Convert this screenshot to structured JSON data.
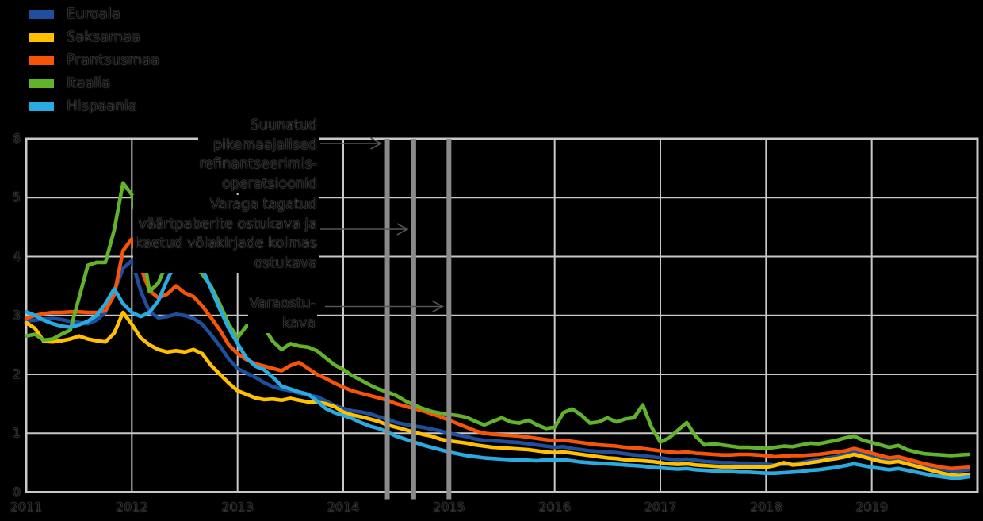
{
  "chart_data": {
    "type": "line",
    "title": "",
    "x_unit": "month",
    "x_range": [
      "2011-01",
      "2019-12"
    ],
    "x_tick_labels": [
      "2011",
      "2012",
      "2013",
      "2014",
      "2015",
      "2016",
      "2017",
      "2018",
      "2019"
    ],
    "y_tick_labels": [
      "0",
      "1",
      "2",
      "3",
      "4",
      "5",
      "6"
    ],
    "ylim": [
      0,
      6
    ],
    "grid": true,
    "legend_position": "top-left",
    "background_color": "#000000",
    "gridline_color": "#C8C8C8",
    "series": [
      {
        "name": "Euroala",
        "color": "#1F4E9C",
        "values": [
          2.9,
          2.92,
          2.94,
          2.95,
          2.93,
          2.9,
          2.88,
          2.86,
          2.92,
          3.05,
          3.4,
          3.8,
          3.93,
          3.42,
          3.06,
          2.96,
          2.98,
          3.02,
          3.0,
          2.95,
          2.85,
          2.67,
          2.48,
          2.26,
          2.1,
          2.02,
          1.95,
          1.86,
          1.79,
          1.75,
          1.72,
          1.68,
          1.65,
          1.62,
          1.55,
          1.47,
          1.42,
          1.38,
          1.36,
          1.33,
          1.28,
          1.24,
          1.18,
          1.15,
          1.12,
          1.1,
          1.07,
          1.04,
          1.0,
          0.97,
          0.94,
          0.9,
          0.88,
          0.87,
          0.86,
          0.85,
          0.84,
          0.82,
          0.8,
          0.78,
          0.76,
          0.77,
          0.74,
          0.72,
          0.7,
          0.69,
          0.68,
          0.67,
          0.65,
          0.63,
          0.62,
          0.6,
          0.58,
          0.56,
          0.55,
          0.56,
          0.54,
          0.52,
          0.51,
          0.5,
          0.5,
          0.49,
          0.49,
          0.48,
          0.47,
          0.46,
          0.47,
          0.48,
          0.5,
          0.53,
          0.55,
          0.58,
          0.6,
          0.64,
          0.68,
          0.64,
          0.6,
          0.56,
          0.54,
          0.56,
          0.52,
          0.48,
          0.45,
          0.42,
          0.39,
          0.36,
          0.36,
          0.38
        ]
      },
      {
        "name": "Saksamaa",
        "color": "#FFC000",
        "values": [
          2.88,
          2.78,
          2.56,
          2.55,
          2.57,
          2.6,
          2.65,
          2.6,
          2.57,
          2.55,
          2.7,
          3.05,
          2.85,
          2.62,
          2.5,
          2.42,
          2.38,
          2.4,
          2.38,
          2.42,
          2.35,
          2.15,
          2.0,
          1.85,
          1.72,
          1.66,
          1.6,
          1.57,
          1.58,
          1.56,
          1.59,
          1.56,
          1.53,
          1.53,
          1.5,
          1.45,
          1.36,
          1.31,
          1.28,
          1.24,
          1.2,
          1.14,
          1.1,
          1.06,
          1.02,
          0.98,
          0.95,
          0.9,
          0.87,
          0.85,
          0.83,
          0.8,
          0.78,
          0.76,
          0.75,
          0.74,
          0.73,
          0.72,
          0.7,
          0.68,
          0.67,
          0.68,
          0.66,
          0.64,
          0.62,
          0.6,
          0.58,
          0.57,
          0.55,
          0.54,
          0.53,
          0.52,
          0.5,
          0.48,
          0.47,
          0.48,
          0.46,
          0.45,
          0.44,
          0.43,
          0.43,
          0.42,
          0.42,
          0.42,
          0.42,
          0.45,
          0.5,
          0.46,
          0.47,
          0.5,
          0.52,
          0.55,
          0.57,
          0.6,
          0.64,
          0.6,
          0.56,
          0.52,
          0.5,
          0.52,
          0.48,
          0.44,
          0.4,
          0.36,
          0.32,
          0.29,
          0.28,
          0.3
        ]
      },
      {
        "name": "Prantsusmaa",
        "color": "#F85408",
        "values": [
          2.95,
          3.0,
          3.03,
          3.05,
          3.05,
          3.06,
          3.06,
          3.05,
          3.05,
          3.08,
          3.35,
          4.1,
          4.3,
          3.82,
          3.42,
          3.3,
          3.36,
          3.5,
          3.38,
          3.32,
          3.16,
          2.96,
          2.75,
          2.5,
          2.35,
          2.25,
          2.18,
          2.14,
          2.1,
          2.06,
          2.15,
          2.2,
          2.1,
          2.0,
          1.93,
          1.85,
          1.78,
          1.72,
          1.68,
          1.64,
          1.6,
          1.56,
          1.5,
          1.46,
          1.42,
          1.38,
          1.33,
          1.28,
          1.22,
          1.16,
          1.1,
          1.04,
          1.0,
          0.98,
          0.97,
          0.96,
          0.95,
          0.93,
          0.91,
          0.89,
          0.87,
          0.88,
          0.86,
          0.84,
          0.82,
          0.8,
          0.79,
          0.78,
          0.76,
          0.75,
          0.74,
          0.72,
          0.7,
          0.68,
          0.67,
          0.68,
          0.66,
          0.65,
          0.64,
          0.63,
          0.63,
          0.64,
          0.64,
          0.63,
          0.62,
          0.6,
          0.61,
          0.62,
          0.62,
          0.63,
          0.64,
          0.66,
          0.68,
          0.7,
          0.74,
          0.7,
          0.66,
          0.62,
          0.58,
          0.6,
          0.56,
          0.52,
          0.48,
          0.45,
          0.42,
          0.4,
          0.41,
          0.42
        ]
      },
      {
        "name": "Itaalia",
        "color": "#62B22C",
        "values": [
          2.65,
          2.68,
          2.58,
          2.6,
          2.68,
          2.75,
          3.3,
          3.85,
          3.9,
          3.9,
          4.45,
          5.25,
          5.05,
          4.35,
          3.4,
          3.55,
          3.9,
          4.05,
          3.97,
          3.88,
          3.7,
          3.49,
          3.19,
          2.85,
          2.62,
          2.82,
          2.85,
          2.8,
          2.56,
          2.42,
          2.52,
          2.48,
          2.46,
          2.4,
          2.28,
          2.16,
          2.08,
          1.98,
          1.9,
          1.82,
          1.75,
          1.7,
          1.64,
          1.55,
          1.48,
          1.42,
          1.37,
          1.34,
          1.32,
          1.3,
          1.27,
          1.2,
          1.14,
          1.2,
          1.26,
          1.19,
          1.17,
          1.22,
          1.14,
          1.08,
          1.1,
          1.35,
          1.41,
          1.31,
          1.17,
          1.19,
          1.26,
          1.19,
          1.24,
          1.26,
          1.48,
          1.1,
          0.85,
          0.92,
          1.05,
          1.18,
          0.95,
          0.8,
          0.82,
          0.8,
          0.78,
          0.76,
          0.76,
          0.75,
          0.74,
          0.76,
          0.78,
          0.77,
          0.8,
          0.83,
          0.82,
          0.85,
          0.88,
          0.92,
          0.95,
          0.88,
          0.84,
          0.8,
          0.76,
          0.79,
          0.72,
          0.68,
          0.65,
          0.64,
          0.63,
          0.62,
          0.63,
          0.64
        ]
      },
      {
        "name": "Hispaania",
        "color": "#29ABE2",
        "values": [
          3.06,
          3.0,
          2.92,
          2.86,
          2.82,
          2.8,
          2.84,
          2.9,
          3.0,
          3.2,
          3.45,
          3.2,
          3.05,
          2.98,
          3.05,
          3.25,
          3.6,
          3.9,
          4.16,
          4.05,
          3.8,
          3.45,
          3.1,
          2.78,
          2.52,
          2.28,
          2.14,
          2.08,
          1.95,
          1.8,
          1.75,
          1.7,
          1.66,
          1.55,
          1.42,
          1.35,
          1.3,
          1.25,
          1.18,
          1.12,
          1.08,
          1.02,
          0.95,
          0.9,
          0.85,
          0.8,
          0.76,
          0.72,
          0.68,
          0.65,
          0.62,
          0.6,
          0.58,
          0.57,
          0.56,
          0.55,
          0.55,
          0.54,
          0.53,
          0.55,
          0.54,
          0.55,
          0.53,
          0.51,
          0.5,
          0.49,
          0.48,
          0.47,
          0.46,
          0.45,
          0.44,
          0.42,
          0.41,
          0.4,
          0.39,
          0.4,
          0.38,
          0.37,
          0.36,
          0.35,
          0.35,
          0.34,
          0.34,
          0.33,
          0.32,
          0.32,
          0.33,
          0.34,
          0.35,
          0.37,
          0.38,
          0.4,
          0.42,
          0.45,
          0.48,
          0.45,
          0.42,
          0.4,
          0.38,
          0.4,
          0.37,
          0.34,
          0.31,
          0.28,
          0.26,
          0.24,
          0.24,
          0.26
        ]
      }
    ],
    "event_lines": [
      {
        "month_index": 41,
        "color": "#8A8A8A"
      },
      {
        "month_index": 44,
        "color": "#8A8A8A"
      },
      {
        "month_index": 48,
        "color": "#8A8A8A"
      }
    ],
    "annotations": [
      {
        "text": "Suunatud\npikemaajalised\nrefinantseerimis-\noperatsioonid",
        "points_to_event": 0
      },
      {
        "text": "Varaga tagatud\nväärtpaberite ostukava ja\nkaetud võlakirjade kolmas\nostukava",
        "points_to_event": 1
      },
      {
        "text": "Varaostu-\nkava",
        "points_to_event": 2
      }
    ]
  }
}
